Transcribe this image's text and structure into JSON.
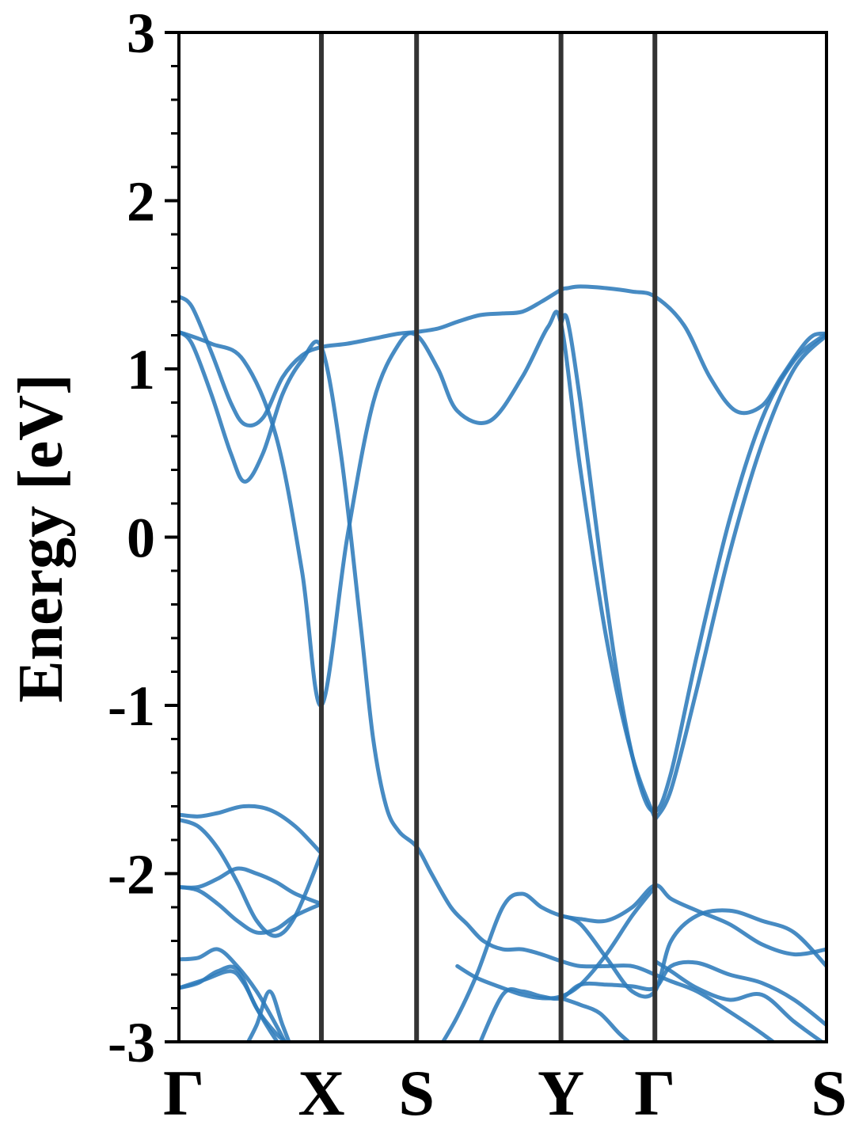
{
  "chart_data": {
    "type": "line",
    "title": "",
    "ylabel": "Energy [eV]",
    "xlabel": "",
    "ylim": [
      -3,
      3
    ],
    "y_ticks": [
      {
        "value": 3,
        "label": "3"
      },
      {
        "value": 2,
        "label": "2"
      },
      {
        "value": 1,
        "label": "1"
      },
      {
        "value": 0,
        "label": "0"
      },
      {
        "value": -1,
        "label": "-1"
      },
      {
        "value": -2,
        "label": "-2"
      },
      {
        "value": -3,
        "label": "-3"
      }
    ],
    "y_minor_step": 0.2,
    "k_path": [
      {
        "label": "Γ",
        "x": 0.0
      },
      {
        "label": "X",
        "x": 0.22
      },
      {
        "label": "S",
        "x": 0.367
      },
      {
        "label": "Y",
        "x": 0.59
      },
      {
        "label": "Γ",
        "x": 0.735
      },
      {
        "label": "S",
        "x": 1.0
      }
    ],
    "xlim": [
      0.0,
      1.0
    ],
    "band_color": "#2e7bbb",
    "divider_color": "#333333",
    "grid": false,
    "legend": "none",
    "bands": [
      {
        "x": [
          0.0,
          0.02,
          0.05,
          0.08,
          0.102,
          0.13,
          0.16,
          0.19,
          0.22,
          0.26,
          0.3,
          0.34,
          0.367,
          0.4,
          0.43,
          0.465,
          0.5,
          0.53,
          0.56,
          0.59,
          0.6,
          0.62,
          0.66,
          0.7,
          0.735,
          0.78,
          0.82,
          0.86,
          0.9,
          0.93,
          0.96,
          0.98,
          1.0
        ],
        "y": [
          1.43,
          1.37,
          1.1,
          0.8,
          0.67,
          0.71,
          0.95,
          1.08,
          1.13,
          1.15,
          1.18,
          1.21,
          1.22,
          1.24,
          1.28,
          1.32,
          1.33,
          1.34,
          1.4,
          1.47,
          1.48,
          1.49,
          1.48,
          1.46,
          1.43,
          1.26,
          0.95,
          0.75,
          0.78,
          0.95,
          1.12,
          1.2,
          1.21
        ]
      },
      {
        "x": [
          0.0,
          0.02,
          0.05,
          0.08,
          0.102,
          0.13,
          0.16,
          0.19,
          0.22,
          0.25,
          0.28,
          0.3,
          0.32,
          0.34,
          0.367,
          0.39,
          0.42,
          0.445,
          0.47,
          0.5,
          0.53,
          0.56,
          0.59,
          0.62,
          0.66,
          0.7,
          0.735,
          0.76,
          0.8,
          0.85,
          0.9,
          0.95,
          1.0
        ],
        "y": [
          1.22,
          1.15,
          0.85,
          0.5,
          0.33,
          0.5,
          0.85,
          1.05,
          1.13,
          0.5,
          -0.5,
          -1.2,
          -1.6,
          -1.75,
          -1.84,
          -2.0,
          -2.2,
          -2.3,
          -2.4,
          -2.45,
          -2.45,
          -2.48,
          -2.52,
          -2.55,
          -2.55,
          -2.55,
          -2.6,
          -2.64,
          -2.7,
          -2.82,
          -2.95,
          -3.1,
          -3.3
        ]
      },
      {
        "x": [
          0.0,
          0.05,
          0.1,
          0.15,
          0.19,
          0.22,
          0.26,
          0.3,
          0.34,
          0.367,
          0.4,
          0.43,
          0.48,
          0.53,
          0.57,
          0.59,
          0.62,
          0.66,
          0.7,
          0.735
        ],
        "y": [
          1.22,
          1.15,
          1.05,
          0.6,
          -0.2,
          -1.0,
          0.0,
          0.8,
          1.15,
          1.2,
          1.0,
          0.75,
          0.69,
          0.95,
          1.25,
          1.27,
          0.4,
          -0.6,
          -1.3,
          -1.67
        ]
      },
      {
        "x": [
          0.59,
          0.6,
          0.62,
          0.65,
          0.68,
          0.71,
          0.735,
          0.76,
          0.8,
          0.85,
          0.9,
          0.95,
          1.0
        ],
        "y": [
          1.27,
          1.29,
          0.8,
          -0.1,
          -0.9,
          -1.45,
          -1.63,
          -1.4,
          -0.7,
          0.1,
          0.7,
          1.05,
          1.21
        ]
      },
      {
        "x": [
          0.735,
          0.76,
          0.8,
          0.85,
          0.9,
          0.95,
          1.0
        ],
        "y": [
          -1.68,
          -1.5,
          -0.9,
          -0.1,
          0.55,
          1.0,
          1.2
        ]
      },
      {
        "x": [
          0.0,
          0.03,
          0.06,
          0.1,
          0.14,
          0.18,
          0.22
        ],
        "y": [
          -1.65,
          -1.66,
          -1.64,
          -1.6,
          -1.62,
          -1.72,
          -1.88
        ]
      },
      {
        "x": [
          0.0,
          0.03,
          0.06,
          0.09,
          0.12,
          0.15,
          0.18,
          0.22
        ],
        "y": [
          -1.68,
          -1.72,
          -1.85,
          -2.05,
          -2.28,
          -2.37,
          -2.25,
          -1.88
        ]
      },
      {
        "x": [
          0.0,
          0.03,
          0.06,
          0.09,
          0.12,
          0.15,
          0.18,
          0.22
        ],
        "y": [
          -2.08,
          -2.08,
          -2.03,
          -1.97,
          -2.0,
          -2.05,
          -2.12,
          -2.18
        ]
      },
      {
        "x": [
          0.0,
          0.03,
          0.06,
          0.09,
          0.12,
          0.15,
          0.18,
          0.22
        ],
        "y": [
          -2.08,
          -2.1,
          -2.18,
          -2.28,
          -2.35,
          -2.33,
          -2.25,
          -2.18
        ]
      },
      {
        "x": [
          0.0,
          0.03,
          0.06,
          0.09,
          0.12,
          0.15,
          0.17
        ],
        "y": [
          -2.51,
          -2.5,
          -2.45,
          -2.55,
          -2.7,
          -2.9,
          -3.05
        ]
      },
      {
        "x": [
          0.0,
          0.03,
          0.06,
          0.09,
          0.12,
          0.15,
          0.18
        ],
        "y": [
          -2.68,
          -2.65,
          -2.58,
          -2.57,
          -2.8,
          -2.95,
          -3.05
        ]
      },
      {
        "x": [
          0.0,
          0.04,
          0.08,
          0.1,
          0.12,
          0.14,
          0.16,
          0.18
        ],
        "y": [
          -2.68,
          -2.63,
          -2.58,
          -2.65,
          -2.8,
          -2.93,
          -3.05,
          -3.2
        ]
      },
      {
        "x": [
          0.1,
          0.12,
          0.14,
          0.16,
          0.18
        ],
        "y": [
          -3.05,
          -2.9,
          -2.7,
          -2.9,
          -3.1
        ]
      },
      {
        "x": [
          0.4,
          0.43,
          0.46,
          0.5,
          0.53,
          0.56,
          0.59,
          0.62,
          0.66,
          0.7,
          0.735,
          0.76,
          0.8,
          0.85,
          0.9,
          0.95,
          1.0
        ],
        "y": [
          -3.05,
          -2.85,
          -2.6,
          -2.2,
          -2.12,
          -2.2,
          -2.25,
          -2.27,
          -2.28,
          -2.2,
          -2.07,
          -2.15,
          -2.22,
          -2.3,
          -2.42,
          -2.48,
          -2.45
        ]
      },
      {
        "x": [
          0.43,
          0.46,
          0.5,
          0.53,
          0.56,
          0.59,
          0.62,
          0.66,
          0.7,
          0.735
        ],
        "y": [
          -2.55,
          -2.62,
          -2.68,
          -2.72,
          -2.74,
          -2.73,
          -2.66,
          -2.48,
          -2.25,
          -2.08
        ]
      },
      {
        "x": [
          0.46,
          0.5,
          0.53,
          0.56,
          0.59,
          0.62,
          0.66,
          0.7,
          0.735,
          0.76,
          0.8,
          0.85,
          0.9,
          0.95,
          1.0
        ],
        "y": [
          -3.05,
          -2.72,
          -2.7,
          -2.73,
          -2.74,
          -2.66,
          -2.66,
          -2.67,
          -2.68,
          -2.55,
          -2.53,
          -2.6,
          -2.65,
          -2.75,
          -2.9
        ]
      },
      {
        "x": [
          0.59,
          0.62,
          0.66,
          0.7,
          0.735,
          0.76,
          0.8,
          0.85,
          0.9,
          0.95,
          1.0
        ],
        "y": [
          -2.25,
          -2.3,
          -2.5,
          -2.7,
          -2.7,
          -2.4,
          -2.25,
          -2.22,
          -2.28,
          -2.35,
          -2.55
        ]
      },
      {
        "x": [
          0.59,
          0.62,
          0.65,
          0.68,
          0.71
        ],
        "y": [
          -2.74,
          -2.78,
          -2.83,
          -2.95,
          -3.05
        ]
      },
      {
        "x": [
          0.735,
          0.76,
          0.8,
          0.85,
          0.9,
          0.95,
          1.0
        ],
        "y": [
          -2.52,
          -2.58,
          -2.68,
          -2.75,
          -2.72,
          -2.88,
          -3.02
        ]
      }
    ]
  }
}
